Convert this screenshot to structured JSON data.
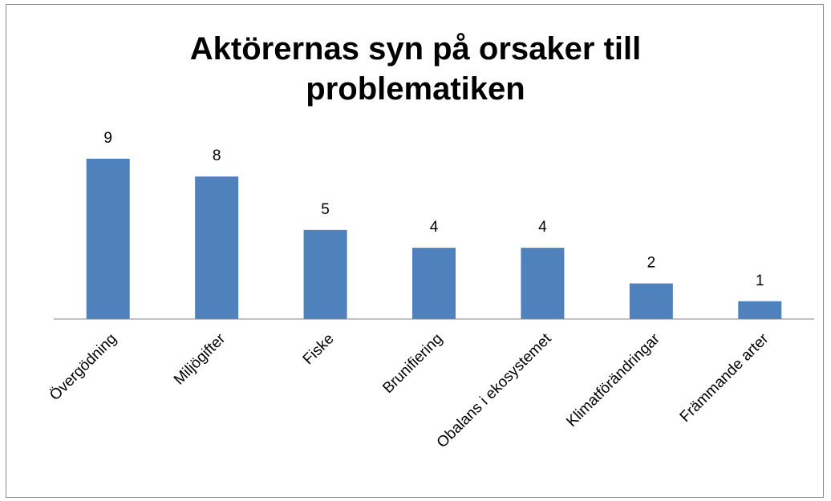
{
  "chart_data": {
    "type": "bar",
    "title": "Aktörernas syn på orsaker till problematiken",
    "categories": [
      "Övergödning",
      "Miljögifter",
      "Fiske",
      "Brunifiering",
      "Obalans i ekosystemet",
      "Klimatförändringar",
      "Främmande arter"
    ],
    "values": [
      9,
      8,
      5,
      4,
      4,
      2,
      1
    ],
    "color": "#4f81bd"
  }
}
